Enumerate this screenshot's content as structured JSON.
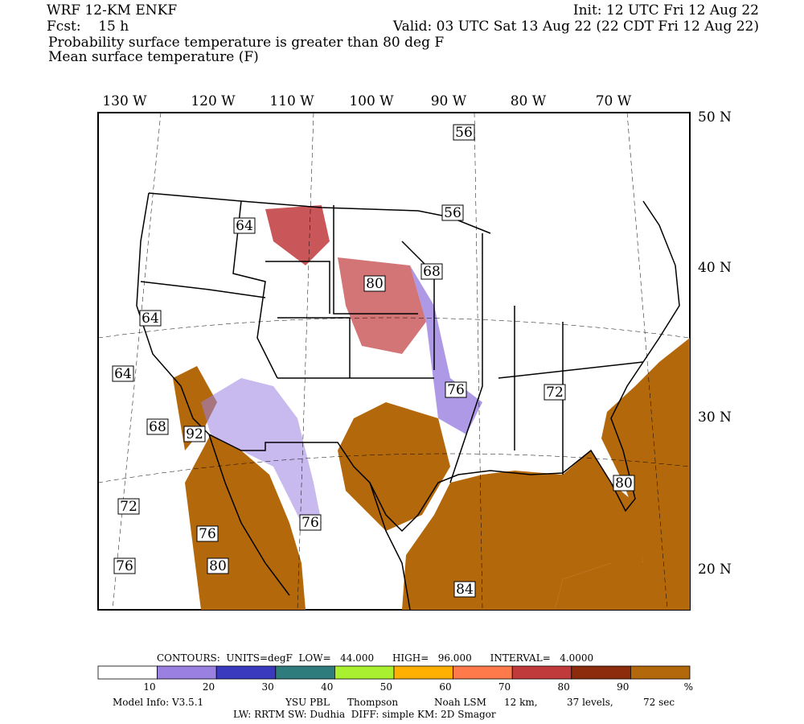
{
  "header": {
    "left": [
      "WRF 12-KM ENKF",
      "Fcst:    15 h",
      "Probability surface temperature is greater than 80 deg F",
      "Mean surface temperature (F)"
    ],
    "right": [
      "Init: 12 UTC Fri 12 Aug 22",
      "Valid: 03 UTC Sat 13 Aug 22 (22 CDT Fri 12 Aug 22)"
    ]
  },
  "map": {
    "longitudes": [
      "130 W",
      "120 W",
      "110 W",
      "100 W",
      "90 W",
      "80 W",
      "70 W"
    ],
    "latitudes": [
      "50 N",
      "40 N",
      "30 N",
      "20 N"
    ],
    "contour_labels": [
      "56",
      "56",
      "64",
      "80",
      "68",
      "64",
      "64",
      "76",
      "72",
      "68",
      "92",
      "72",
      "76",
      "76",
      "76",
      "80",
      "84",
      "80"
    ]
  },
  "colorbar": {
    "info": "CONTOURS:  UNITS=degF  LOW=   44.000      HIGH=   96.000      INTERVAL=   4.0000",
    "colors": [
      "#ffffff",
      "#9a80e0",
      "#3a3abf",
      "#2e7c7c",
      "#a8f030",
      "#ffb000",
      "#ff7a4a",
      "#c03a3c",
      "#8c2c0c",
      "#b4680c"
    ],
    "ticks": [
      10,
      20,
      30,
      40,
      50,
      60,
      70,
      80,
      90
    ],
    "unit": "%"
  },
  "footer": {
    "line1": [
      "Model Info: V3.5.1",
      "YSU PBL",
      "Thompson",
      "Noah LSM",
      "12 km,",
      "37 levels,",
      "72 sec"
    ],
    "line2": "LW: RRTM SW: Dudhia  DIFF: simple KM: 2D Smagor"
  }
}
